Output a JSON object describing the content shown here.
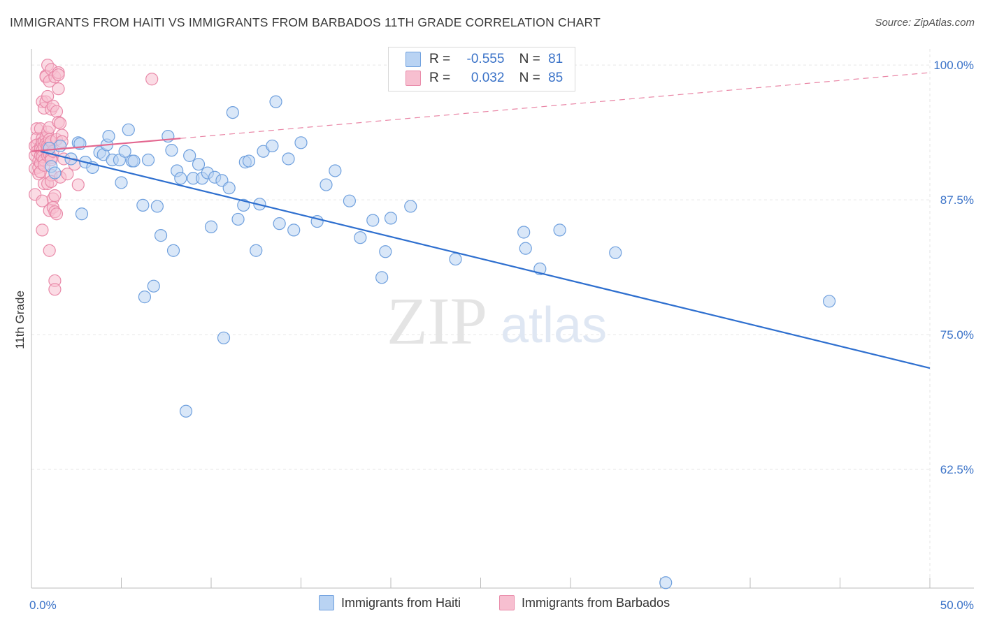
{
  "header": {
    "title": "IMMIGRANTS FROM HAITI VS IMMIGRANTS FROM BARBADOS 11TH GRADE CORRELATION CHART",
    "source": "Source: ZipAtlas.com"
  },
  "watermark": {
    "zip": "ZIP",
    "atlas": "atlas"
  },
  "stats_legend": [
    {
      "r_label": "R =",
      "r_value": "-0.555",
      "n_label": "N =",
      "n_value": "81"
    },
    {
      "r_label": "R =",
      "r_value": "0.032",
      "n_label": "N =",
      "n_value": "85"
    }
  ],
  "colors": {
    "haiti_fill": "#b9d3f3",
    "haiti_stroke": "#6fa0de",
    "haiti_line": "#2e6fcf",
    "barbados_fill": "#f7bfd0",
    "barbados_stroke": "#e98aa9",
    "barbados_line": "#e3668f",
    "tick_label": "#3b73c8",
    "grid": "#e6e6e6"
  },
  "chart_data": {
    "type": "scatter",
    "title": "IMMIGRANTS FROM HAITI VS IMMIGRANTS FROM BARBADOS 11TH GRADE CORRELATION CHART",
    "xlabel": "",
    "ylabel": "11th Grade",
    "xlim": [
      0,
      50
    ],
    "ylim": [
      51.5,
      101.5
    ],
    "x_tick_labels": [
      "0.0%",
      "50.0%"
    ],
    "y_ticks": [
      62.5,
      75.0,
      87.5,
      100.0
    ],
    "y_tick_labels": [
      "62.5%",
      "75.0%",
      "87.5%",
      "100.0%"
    ],
    "grid": true,
    "legend_position": "bottom-center",
    "series": [
      {
        "name": "Immigrants from Haiti",
        "R": -0.555,
        "N": 81,
        "trend": {
          "x": [
            0.5,
            50
          ],
          "y": [
            92.0,
            71.9
          ]
        },
        "points": [
          [
            1.0,
            92.3
          ],
          [
            1.1,
            90.6
          ],
          [
            1.3,
            90.0
          ],
          [
            1.6,
            92.5
          ],
          [
            2.2,
            91.3
          ],
          [
            2.6,
            92.8
          ],
          [
            2.7,
            92.7
          ],
          [
            2.8,
            86.2
          ],
          [
            3.0,
            91.0
          ],
          [
            3.4,
            90.5
          ],
          [
            3.8,
            91.9
          ],
          [
            4.0,
            91.7
          ],
          [
            4.2,
            92.6
          ],
          [
            4.3,
            93.4
          ],
          [
            4.5,
            91.2
          ],
          [
            4.9,
            91.2
          ],
          [
            5.0,
            89.1
          ],
          [
            5.2,
            92.0
          ],
          [
            5.4,
            94.0
          ],
          [
            5.6,
            91.1
          ],
          [
            5.7,
            91.1
          ],
          [
            6.2,
            87.0
          ],
          [
            6.3,
            78.5
          ],
          [
            6.5,
            91.2
          ],
          [
            6.8,
            79.5
          ],
          [
            7.0,
            86.9
          ],
          [
            7.2,
            84.2
          ],
          [
            7.6,
            93.4
          ],
          [
            7.8,
            92.1
          ],
          [
            7.9,
            82.8
          ],
          [
            8.1,
            90.2
          ],
          [
            8.3,
            89.5
          ],
          [
            8.6,
            67.9
          ],
          [
            8.8,
            91.6
          ],
          [
            9.0,
            89.5
          ],
          [
            9.3,
            90.8
          ],
          [
            9.5,
            89.5
          ],
          [
            9.8,
            90.0
          ],
          [
            10.0,
            85.0
          ],
          [
            10.2,
            89.6
          ],
          [
            10.6,
            89.3
          ],
          [
            10.7,
            74.7
          ],
          [
            11.0,
            88.6
          ],
          [
            11.2,
            95.6
          ],
          [
            11.5,
            85.7
          ],
          [
            11.8,
            87.0
          ],
          [
            11.9,
            91.0
          ],
          [
            12.1,
            91.1
          ],
          [
            12.5,
            82.8
          ],
          [
            12.7,
            87.1
          ],
          [
            12.9,
            92.0
          ],
          [
            13.4,
            92.5
          ],
          [
            13.6,
            96.6
          ],
          [
            13.8,
            85.3
          ],
          [
            14.3,
            91.3
          ],
          [
            14.6,
            84.7
          ],
          [
            15.0,
            92.8
          ],
          [
            15.9,
            85.5
          ],
          [
            16.4,
            88.9
          ],
          [
            16.9,
            90.2
          ],
          [
            17.7,
            87.4
          ],
          [
            18.3,
            84.0
          ],
          [
            19.0,
            85.6
          ],
          [
            19.5,
            80.3
          ],
          [
            19.7,
            82.7
          ],
          [
            20.0,
            85.8
          ],
          [
            21.1,
            86.9
          ],
          [
            23.6,
            82.0
          ],
          [
            27.4,
            84.5
          ],
          [
            27.5,
            83.0
          ],
          [
            28.3,
            81.1
          ],
          [
            29.4,
            84.7
          ],
          [
            32.5,
            82.6
          ],
          [
            44.4,
            78.1
          ],
          [
            35.3,
            52.0
          ]
        ]
      },
      {
        "name": "Immigrants from Barbados",
        "R": 0.032,
        "N": 85,
        "trend": {
          "x": [
            0.0,
            8.3
          ],
          "y": [
            92.0,
            93.2
          ]
        },
        "trend_extended": {
          "x": [
            8.3,
            50
          ],
          "y": [
            93.2,
            99.3
          ]
        },
        "points": [
          [
            0.2,
            92.5
          ],
          [
            0.2,
            91.6
          ],
          [
            0.2,
            90.4
          ],
          [
            0.2,
            88.0
          ],
          [
            0.3,
            94.1
          ],
          [
            0.3,
            93.2
          ],
          [
            0.3,
            92.6
          ],
          [
            0.3,
            92.0
          ],
          [
            0.4,
            91.1
          ],
          [
            0.4,
            90.5
          ],
          [
            0.4,
            89.9
          ],
          [
            0.5,
            94.1
          ],
          [
            0.5,
            92.4
          ],
          [
            0.5,
            92.2
          ],
          [
            0.5,
            91.6
          ],
          [
            0.5,
            90.9
          ],
          [
            0.5,
            90.1
          ],
          [
            0.6,
            96.6
          ],
          [
            0.6,
            93.2
          ],
          [
            0.6,
            92.8
          ],
          [
            0.6,
            92.1
          ],
          [
            0.6,
            91.5
          ],
          [
            0.6,
            87.4
          ],
          [
            0.6,
            84.7
          ],
          [
            0.7,
            96.0
          ],
          [
            0.7,
            92.9
          ],
          [
            0.7,
            92.4
          ],
          [
            0.7,
            91.2
          ],
          [
            0.7,
            90.7
          ],
          [
            0.7,
            89.0
          ],
          [
            0.8,
            99.0
          ],
          [
            0.8,
            98.9
          ],
          [
            0.8,
            96.6
          ],
          [
            0.8,
            93.3
          ],
          [
            0.8,
            92.7
          ],
          [
            0.9,
            100.0
          ],
          [
            0.9,
            97.1
          ],
          [
            0.9,
            93.8
          ],
          [
            0.9,
            92.6
          ],
          [
            0.9,
            92.3
          ],
          [
            0.9,
            91.6
          ],
          [
            0.9,
            89.0
          ],
          [
            1.0,
            98.5
          ],
          [
            1.0,
            94.2
          ],
          [
            1.0,
            93.1
          ],
          [
            1.0,
            91.7
          ],
          [
            1.0,
            86.5
          ],
          [
            1.0,
            82.8
          ],
          [
            1.1,
            99.6
          ],
          [
            1.1,
            95.9
          ],
          [
            1.1,
            92.9
          ],
          [
            1.1,
            91.4
          ],
          [
            1.1,
            91.2
          ],
          [
            1.1,
            89.8
          ],
          [
            1.1,
            89.2
          ],
          [
            1.2,
            96.2
          ],
          [
            1.2,
            92.0
          ],
          [
            1.2,
            87.6
          ],
          [
            1.2,
            86.8
          ],
          [
            1.3,
            98.9
          ],
          [
            1.3,
            87.9
          ],
          [
            1.3,
            86.4
          ],
          [
            1.3,
            80.0
          ],
          [
            1.3,
            79.2
          ],
          [
            1.4,
            95.7
          ],
          [
            1.4,
            93.1
          ],
          [
            1.4,
            86.2
          ],
          [
            1.5,
            99.3
          ],
          [
            1.5,
            99.1
          ],
          [
            1.5,
            97.8
          ],
          [
            1.5,
            94.7
          ],
          [
            1.6,
            94.6
          ],
          [
            1.6,
            89.6
          ],
          [
            1.7,
            93.5
          ],
          [
            1.7,
            92.9
          ],
          [
            1.8,
            91.3
          ],
          [
            2.0,
            89.9
          ],
          [
            2.4,
            90.8
          ],
          [
            2.6,
            88.9
          ],
          [
            6.7,
            98.7
          ]
        ]
      }
    ]
  },
  "bottom_legend": [
    {
      "label": "Immigrants from Haiti"
    },
    {
      "label": "Immigrants from Barbados"
    }
  ]
}
